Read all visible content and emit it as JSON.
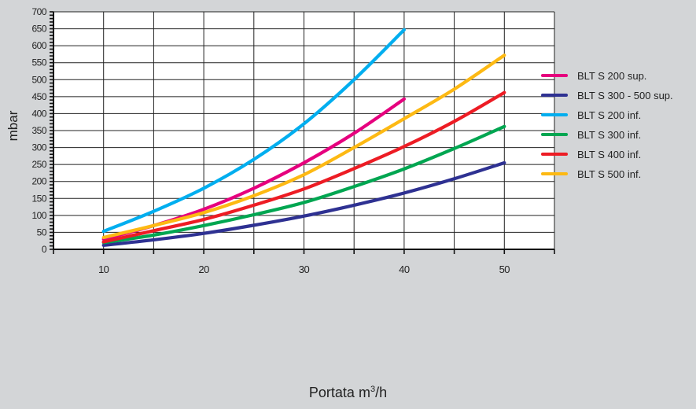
{
  "chart_data": {
    "type": "line",
    "title": "",
    "xlabel_main": "Portata m",
    "xlabel_sup": "3",
    "xlabel_tail": "/h",
    "ylabel": "mbar",
    "xlim": [
      5,
      55
    ],
    "ylim": [
      0,
      700
    ],
    "x_ticks": [
      10,
      20,
      30,
      40,
      50
    ],
    "y_ticks": [
      0,
      50,
      100,
      150,
      200,
      250,
      300,
      350,
      400,
      450,
      500,
      550,
      600,
      650,
      700
    ],
    "grid": true,
    "legend_position": "right",
    "series": [
      {
        "name": "BLT S 200 sup.",
        "color": "#e6007e",
        "x": [
          10,
          15,
          20,
          25,
          30,
          35,
          40
        ],
        "y": [
          30,
          70,
          118,
          180,
          255,
          342,
          443
        ]
      },
      {
        "name": "BLT S 300 - 500 sup.",
        "color": "#2e3192",
        "x": [
          10,
          15,
          20,
          25,
          30,
          35,
          40,
          45,
          50
        ],
        "y": [
          12,
          28,
          47,
          71,
          98,
          130,
          166,
          208,
          255
        ]
      },
      {
        "name": "BLT S 200 inf.",
        "color": "#00aeef",
        "x": [
          10,
          15,
          20,
          25,
          30,
          35,
          40
        ],
        "y": [
          53,
          112,
          180,
          265,
          370,
          500,
          647
        ]
      },
      {
        "name": "BLT S 300 inf.",
        "color": "#00a651",
        "x": [
          10,
          15,
          20,
          25,
          30,
          35,
          40,
          45,
          50
        ],
        "y": [
          20,
          42,
          70,
          102,
          138,
          185,
          237,
          297,
          362
        ]
      },
      {
        "name": "BLT S 400 inf.",
        "color": "#ed1c24",
        "x": [
          10,
          15,
          20,
          25,
          30,
          35,
          40,
          45,
          50
        ],
        "y": [
          22,
          55,
          88,
          130,
          178,
          238,
          303,
          377,
          462
        ]
      },
      {
        "name": "BLT S 500 inf.",
        "color": "#fdb913",
        "x": [
          10,
          15,
          20,
          25,
          30,
          35,
          40,
          45,
          50
        ],
        "y": [
          35,
          70,
          108,
          158,
          220,
          300,
          385,
          472,
          572
        ]
      }
    ]
  }
}
